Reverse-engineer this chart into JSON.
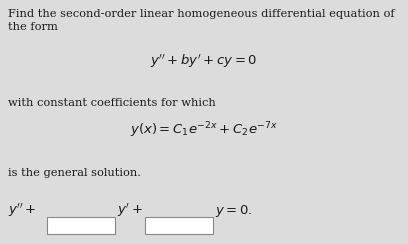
{
  "bg_color": "#dcdcdc",
  "text_color": "#1a1a1a",
  "fig_width": 4.08,
  "fig_height": 2.44,
  "dpi": 100,
  "line1": "Find the second-order linear homogeneous differential equation of",
  "line2": "the form",
  "eq1": "$y'' + by' + cy = 0$",
  "line3": "with constant coefficients for which",
  "eq2": "$y(x) = C_1e^{-2x} + C_2e^{-7x}$",
  "line4": "is the general solution.",
  "font_size_body": 8.2,
  "font_size_eq": 9.5,
  "font_size_bottom": 9.5
}
